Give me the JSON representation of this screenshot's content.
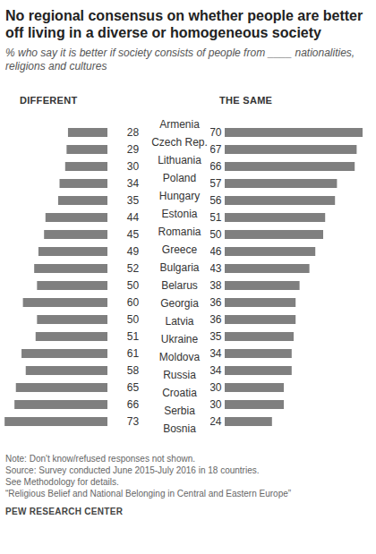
{
  "chart_data": {
    "type": "bar",
    "orientation": "horizontal",
    "title": "No regional consensus on whether people are better off living in a diverse or homogeneous society",
    "subtitle": "% who say it is better if society consists of people from ____ nationalities, religions and cultures",
    "categories": [
      "Armenia",
      "Czech Rep.",
      "Lithuania",
      "Poland",
      "Hungary",
      "Estonia",
      "Romania",
      "Greece",
      "Bulgaria",
      "Belarus",
      "Georgia",
      "Latvia",
      "Ukraine",
      "Moldova",
      "Russia",
      "Croatia",
      "Serbia",
      "Bosnia"
    ],
    "series": [
      {
        "name": "DIFFERENT",
        "color": "#7f7f7f",
        "values": [
          28,
          29,
          30,
          34,
          35,
          44,
          45,
          49,
          52,
          50,
          60,
          50,
          51,
          61,
          58,
          65,
          66,
          73
        ]
      },
      {
        "name": "THE SAME",
        "color": "#7f7f7f",
        "values": [
          70,
          67,
          66,
          57,
          56,
          51,
          50,
          46,
          43,
          38,
          36,
          36,
          35,
          34,
          34,
          30,
          30,
          24
        ]
      }
    ],
    "xlim": [
      0,
      75
    ],
    "data_labels": true,
    "tick_labels": "y",
    "notes": [
      "Note: Don't know/refused responses not shown.",
      "Source: Survey conducted June 2015-July 2016 in 18 countries.",
      "See Methodology for details.",
      "“Religious Belief and National Belonging in Central and Eastern Europe”"
    ],
    "credit": "PEW RESEARCH CENTER"
  }
}
